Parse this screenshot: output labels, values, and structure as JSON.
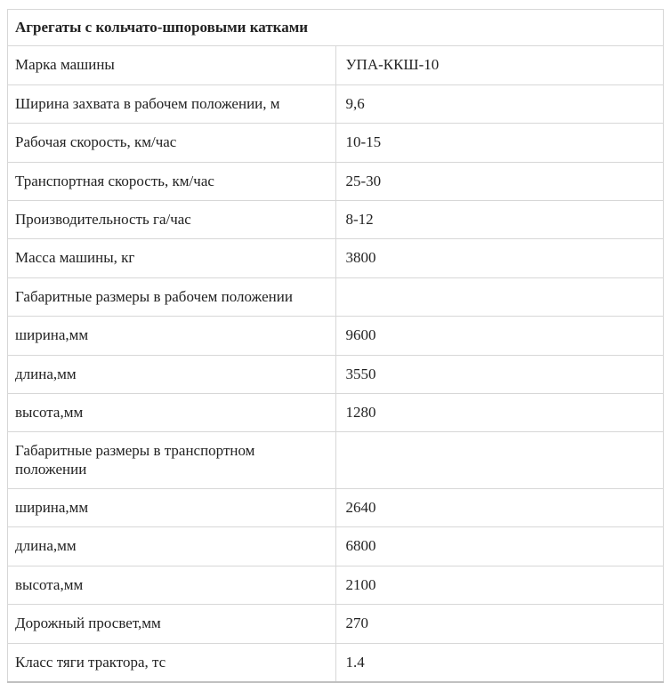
{
  "table": {
    "title": "Агрегаты с кольчато-шпоровыми катками",
    "rows": [
      {
        "label": "Марка машины",
        "value": "УПА-ККШ-10"
      },
      {
        "label": "Ширина захвата в рабочем положении, м",
        "value": "9,6"
      },
      {
        "label": "Рабочая скорость, км/час",
        "value": "10-15"
      },
      {
        "label": "Транспортная скорость, км/час",
        "value": "25-30"
      },
      {
        "label": "Производительность га/час",
        "value": "8-12"
      },
      {
        "label": "Масса машины, кг",
        "value": "3800"
      },
      {
        "label": "Габаритные размеры в рабочем положении",
        "value": ""
      },
      {
        "label": "ширина,мм",
        "value": "9600"
      },
      {
        "label": "длина,мм",
        "value": "3550"
      },
      {
        "label": "высота,мм",
        "value": "1280"
      },
      {
        "label": "Габаритные размеры в транспортном положении",
        "value": ""
      },
      {
        "label": "ширина,мм",
        "value": "2640"
      },
      {
        "label": "длина,мм",
        "value": "6800"
      },
      {
        "label": "высота,мм",
        "value": "2100"
      },
      {
        "label": "Дорожный просвет,мм",
        "value": "270"
      },
      {
        "label": "Класс тяги трактора, тс",
        "value": "1.4"
      }
    ],
    "colors": {
      "grid_border": "#d7d7d7",
      "outer_bottom_border": "#bfbfbf",
      "text": "#222222",
      "background": "#ffffff"
    }
  }
}
